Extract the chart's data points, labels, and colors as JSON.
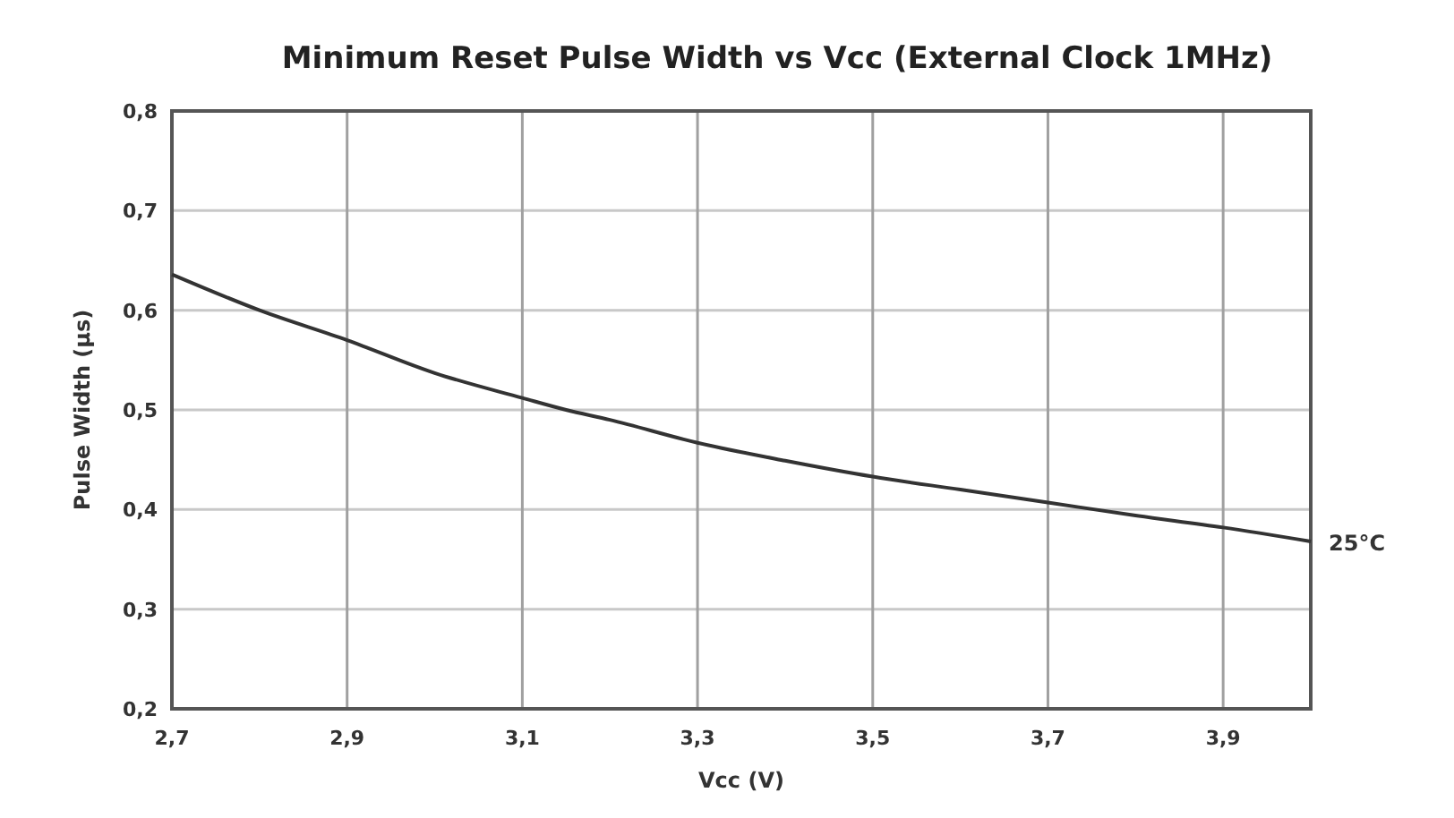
{
  "chart_data": {
    "type": "line",
    "title": "Minimum Reset Pulse Width vs Vcc (External Clock 1MHz)",
    "xlabel": "Vcc (V)",
    "ylabel": "Pulse Width (µs)",
    "series": [
      {
        "name": "25°C",
        "color": "#333333",
        "x": [
          2.7,
          2.8,
          2.9,
          3.0,
          3.1,
          3.15,
          3.2,
          3.3,
          3.4,
          3.5,
          3.6,
          3.7,
          3.8,
          3.9,
          4.0
        ],
        "values": [
          0.636,
          0.6,
          0.57,
          0.537,
          0.512,
          0.5,
          0.49,
          0.467,
          0.449,
          0.433,
          0.42,
          0.407,
          0.394,
          0.382,
          0.368
        ]
      }
    ],
    "xlim": [
      2.7,
      4.0
    ],
    "xticks": [
      {
        "value": 2.7,
        "label": "2,7"
      },
      {
        "value": 2.9,
        "label": "2,9"
      },
      {
        "value": 3.1,
        "label": "3,1"
      },
      {
        "value": 3.3,
        "label": "3,3"
      },
      {
        "value": 3.5,
        "label": "3,5"
      },
      {
        "value": 3.7,
        "label": "3,7"
      },
      {
        "value": 3.9,
        "label": "3,9"
      }
    ],
    "ylim": [
      0.2,
      0.8
    ],
    "yticks": [
      {
        "value": 0.2,
        "label": "0,2"
      },
      {
        "value": 0.3,
        "label": "0,3"
      },
      {
        "value": 0.4,
        "label": "0,4"
      },
      {
        "value": 0.5,
        "label": "0,5"
      },
      {
        "value": 0.6,
        "label": "0,6"
      },
      {
        "value": 0.7,
        "label": "0,7"
      },
      {
        "value": 0.8,
        "label": "0,8"
      }
    ],
    "grid": true,
    "legend": false,
    "marker": "none",
    "line_style": "solid"
  }
}
